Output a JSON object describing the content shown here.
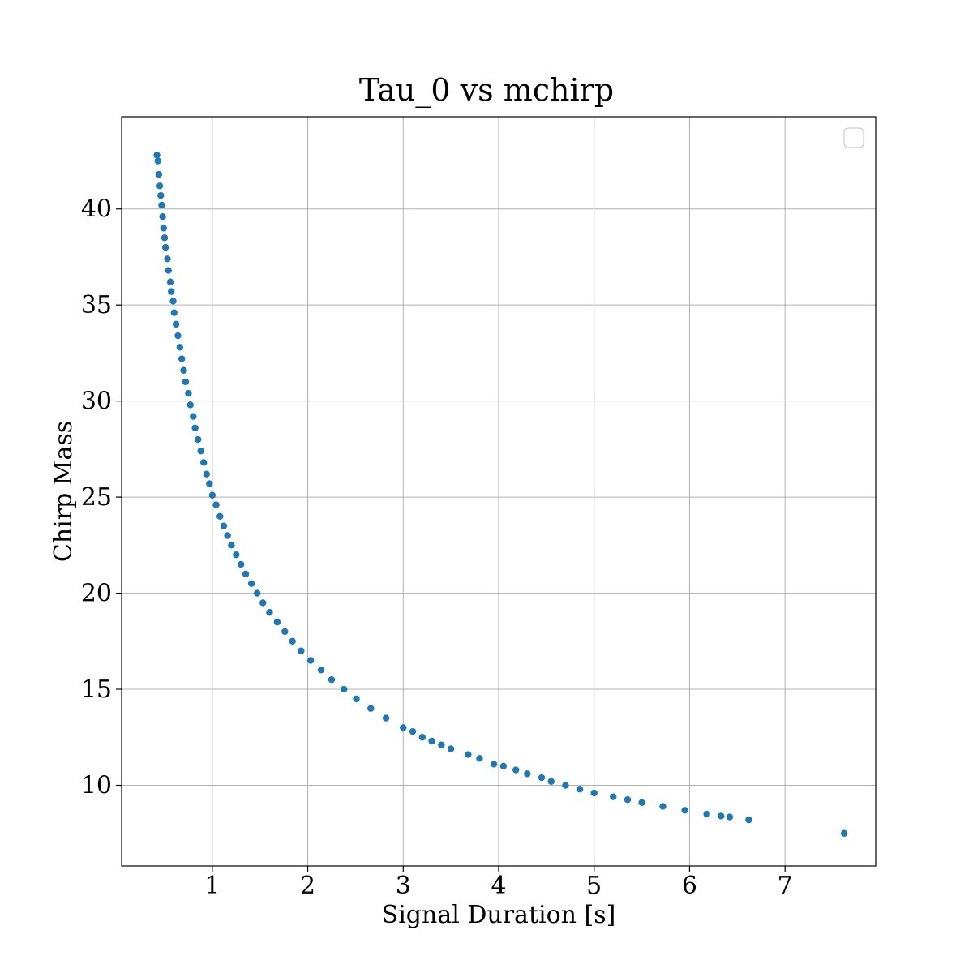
{
  "chart_data": {
    "type": "scatter",
    "title": "Tau_0 vs mchirp",
    "xlabel": "Signal Duration [s]",
    "ylabel": "Chirp Mass",
    "xlim": [
      0.05,
      7.95
    ],
    "ylim": [
      5.8,
      44.8
    ],
    "xticks": [
      1,
      2,
      3,
      4,
      5,
      6,
      7
    ],
    "yticks": [
      10,
      15,
      20,
      25,
      30,
      35,
      40
    ],
    "grid": true,
    "legend": "top-right, empty",
    "marker_color": "#1f77b4",
    "series": [
      {
        "points": [
          [
            0.42,
            42.8
          ],
          [
            0.43,
            42.5
          ],
          [
            0.44,
            41.8
          ],
          [
            0.45,
            41.2
          ],
          [
            0.46,
            40.7
          ],
          [
            0.47,
            40.2
          ],
          [
            0.48,
            39.6
          ],
          [
            0.49,
            39.0
          ],
          [
            0.5,
            38.5
          ],
          [
            0.51,
            38.0
          ],
          [
            0.53,
            37.4
          ],
          [
            0.54,
            36.8
          ],
          [
            0.56,
            36.2
          ],
          [
            0.57,
            35.7
          ],
          [
            0.59,
            35.2
          ],
          [
            0.6,
            34.6
          ],
          [
            0.62,
            34.0
          ],
          [
            0.64,
            33.4
          ],
          [
            0.66,
            32.8
          ],
          [
            0.68,
            32.2
          ],
          [
            0.7,
            31.6
          ],
          [
            0.72,
            31.0
          ],
          [
            0.75,
            30.4
          ],
          [
            0.77,
            29.8
          ],
          [
            0.8,
            29.2
          ],
          [
            0.82,
            28.6
          ],
          [
            0.85,
            28.0
          ],
          [
            0.88,
            27.4
          ],
          [
            0.91,
            26.8
          ],
          [
            0.94,
            26.2
          ],
          [
            0.97,
            25.7
          ],
          [
            1.0,
            25.1
          ],
          [
            1.04,
            24.6
          ],
          [
            1.08,
            24.0
          ],
          [
            1.12,
            23.5
          ],
          [
            1.16,
            23.0
          ],
          [
            1.2,
            22.5
          ],
          [
            1.25,
            22.0
          ],
          [
            1.3,
            21.5
          ],
          [
            1.35,
            21.0
          ],
          [
            1.41,
            20.5
          ],
          [
            1.47,
            20.0
          ],
          [
            1.53,
            19.5
          ],
          [
            1.6,
            19.0
          ],
          [
            1.68,
            18.5
          ],
          [
            1.76,
            18.0
          ],
          [
            1.84,
            17.5
          ],
          [
            1.93,
            17.0
          ],
          [
            2.03,
            16.5
          ],
          [
            2.14,
            16.0
          ],
          [
            2.25,
            15.5
          ],
          [
            2.38,
            15.0
          ],
          [
            2.51,
            14.5
          ],
          [
            2.66,
            14.0
          ],
          [
            2.82,
            13.5
          ],
          [
            3.0,
            13.0
          ],
          [
            3.1,
            12.8
          ],
          [
            3.2,
            12.5
          ],
          [
            3.3,
            12.3
          ],
          [
            3.4,
            12.1
          ],
          [
            3.5,
            11.9
          ],
          [
            3.68,
            11.6
          ],
          [
            3.8,
            11.4
          ],
          [
            3.95,
            11.1
          ],
          [
            4.05,
            11.0
          ],
          [
            4.18,
            10.8
          ],
          [
            4.3,
            10.6
          ],
          [
            4.45,
            10.4
          ],
          [
            4.55,
            10.2
          ],
          [
            4.7,
            10.0
          ],
          [
            4.85,
            9.8
          ],
          [
            5.0,
            9.6
          ],
          [
            5.2,
            9.4
          ],
          [
            5.35,
            9.25
          ],
          [
            5.5,
            9.1
          ],
          [
            5.72,
            8.9
          ],
          [
            5.95,
            8.7
          ],
          [
            6.18,
            8.5
          ],
          [
            6.33,
            8.4
          ],
          [
            6.42,
            8.35
          ],
          [
            6.62,
            8.2
          ],
          [
            7.62,
            7.5
          ]
        ]
      }
    ]
  }
}
